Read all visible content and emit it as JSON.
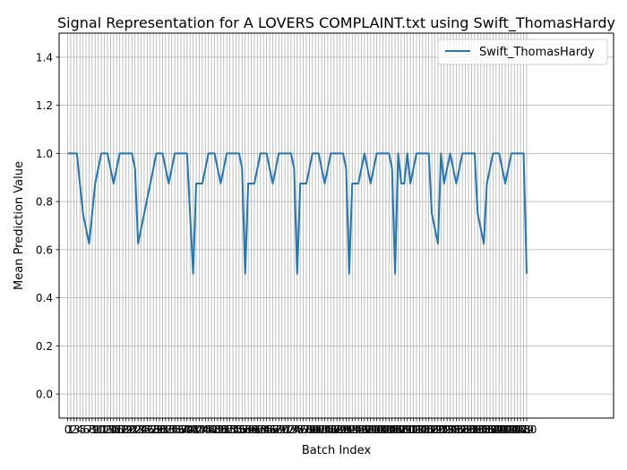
{
  "chart_data": {
    "type": "line",
    "title": "Signal Representation for A LOVERS COMPLAINT.txt using Swift_ThomasHardy",
    "xlabel": "Batch Index",
    "ylabel": "Mean Prediction Value",
    "xlim": [
      -2.8,
      178.4
    ],
    "ylim": [
      -0.1,
      1.5
    ],
    "yticks": [
      0.0,
      0.2,
      0.4,
      0.6,
      0.8,
      1.0,
      1.2,
      1.4
    ],
    "x_tick_step": 1,
    "grid": true,
    "legend_position": "upper right",
    "series": [
      {
        "name": "Swift_ThomasHardy",
        "color": "#1f77b4",
        "x_start": 0,
        "values": [
          1,
          1,
          1,
          1,
          0.875,
          0.75,
          0.6875,
          0.625,
          0.75,
          0.875,
          0.9375,
          1,
          1,
          1,
          0.9375,
          0.875,
          0.9375,
          1,
          1,
          1,
          1,
          1,
          0.9375,
          0.625,
          0.6875,
          0.75,
          0.8125,
          0.875,
          0.9375,
          1,
          1,
          1,
          0.9375,
          0.875,
          0.9375,
          1,
          1,
          1,
          1,
          1,
          0.75,
          0.5,
          0.875,
          0.875,
          0.875,
          0.9375,
          1,
          1,
          1,
          0.9375,
          0.875,
          0.9375,
          1,
          1,
          1,
          1,
          1,
          0.9375,
          0.5,
          0.875,
          0.875,
          0.875,
          0.9375,
          1,
          1,
          1,
          0.9375,
          0.875,
          0.9375,
          1,
          1,
          1,
          1,
          1,
          0.9375,
          0.5,
          0.875,
          0.875,
          0.875,
          0.9375,
          1,
          1,
          1,
          0.9375,
          0.875,
          0.9375,
          1,
          1,
          1,
          1,
          1,
          0.9375,
          0.5,
          0.875,
          0.875,
          0.875,
          0.9375,
          1,
          0.9375,
          0.875,
          0.9375,
          1,
          1,
          1,
          1,
          1,
          0.9375,
          0.5,
          1,
          0.875,
          0.875,
          1,
          0.875,
          0.9375,
          1,
          1,
          1,
          1,
          1,
          0.75,
          0.6875,
          0.625,
          1,
          0.875,
          0.9375,
          1,
          0.9375,
          0.875,
          0.9375,
          1,
          1,
          1,
          1,
          1,
          0.75,
          0.6875,
          0.625,
          0.875,
          0.9375,
          1,
          1,
          1,
          0.9375,
          0.875,
          0.9375,
          1,
          1,
          1,
          1,
          1,
          0.5
        ]
      }
    ]
  }
}
